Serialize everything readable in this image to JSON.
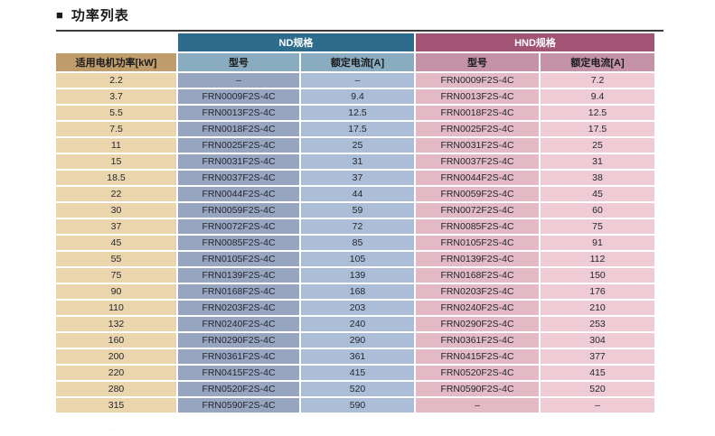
{
  "section": {
    "marker": "■",
    "title": "功率列表"
  },
  "table": {
    "power_header": "适用电机功率[kW]",
    "groups": {
      "nd": "ND规格",
      "hnd": "HND规格"
    },
    "sub_headers": {
      "nd_model": "型号",
      "nd_current": "额定电流[A]",
      "hnd_model": "型号",
      "hnd_current": "额定电流[A]"
    },
    "rows": [
      {
        "power": "2.2",
        "nd_model": "–",
        "nd_current": "–",
        "hnd_model": "FRN0009F2S-4C",
        "hnd_current": "7.2"
      },
      {
        "power": "3.7",
        "nd_model": "FRN0009F2S-4C",
        "nd_current": "9.4",
        "hnd_model": "FRN0013F2S-4C",
        "hnd_current": "9.4"
      },
      {
        "power": "5.5",
        "nd_model": "FRN0013F2S-4C",
        "nd_current": "12.5",
        "hnd_model": "FRN0018F2S-4C",
        "hnd_current": "12.5"
      },
      {
        "power": "7.5",
        "nd_model": "FRN0018F2S-4C",
        "nd_current": "17.5",
        "hnd_model": "FRN0025F2S-4C",
        "hnd_current": "17.5"
      },
      {
        "power": "11",
        "nd_model": "FRN0025F2S-4C",
        "nd_current": "25",
        "hnd_model": "FRN0031F2S-4C",
        "hnd_current": "25"
      },
      {
        "power": "15",
        "nd_model": "FRN0031F2S-4C",
        "nd_current": "31",
        "hnd_model": "FRN0037F2S-4C",
        "hnd_current": "31"
      },
      {
        "power": "18.5",
        "nd_model": "FRN0037F2S-4C",
        "nd_current": "37",
        "hnd_model": "FRN0044F2S-4C",
        "hnd_current": "38"
      },
      {
        "power": "22",
        "nd_model": "FRN0044F2S-4C",
        "nd_current": "44",
        "hnd_model": "FRN0059F2S-4C",
        "hnd_current": "45"
      },
      {
        "power": "30",
        "nd_model": "FRN0059F2S-4C",
        "nd_current": "59",
        "hnd_model": "FRN0072F2S-4C",
        "hnd_current": "60"
      },
      {
        "power": "37",
        "nd_model": "FRN0072F2S-4C",
        "nd_current": "72",
        "hnd_model": "FRN0085F2S-4C",
        "hnd_current": "75"
      },
      {
        "power": "45",
        "nd_model": "FRN0085F2S-4C",
        "nd_current": "85",
        "hnd_model": "FRN0105F2S-4C",
        "hnd_current": "91"
      },
      {
        "power": "55",
        "nd_model": "FRN0105F2S-4C",
        "nd_current": "105",
        "hnd_model": "FRN0139F2S-4C",
        "hnd_current": "112"
      },
      {
        "power": "75",
        "nd_model": "FRN0139F2S-4C",
        "nd_current": "139",
        "hnd_model": "FRN0168F2S-4C",
        "hnd_current": "150"
      },
      {
        "power": "90",
        "nd_model": "FRN0168F2S-4C",
        "nd_current": "168",
        "hnd_model": "FRN0203F2S-4C",
        "hnd_current": "176"
      },
      {
        "power": "110",
        "nd_model": "FRN0203F2S-4C",
        "nd_current": "203",
        "hnd_model": "FRN0240F2S-4C",
        "hnd_current": "210"
      },
      {
        "power": "132",
        "nd_model": "FRN0240F2S-4C",
        "nd_current": "240",
        "hnd_model": "FRN0290F2S-4C",
        "hnd_current": "253"
      },
      {
        "power": "160",
        "nd_model": "FRN0290F2S-4C",
        "nd_current": "290",
        "hnd_model": "FRN0361F2S-4C",
        "hnd_current": "304"
      },
      {
        "power": "200",
        "nd_model": "FRN0361F2S-4C",
        "nd_current": "361",
        "hnd_model": "FRN0415F2S-4C",
        "hnd_current": "377"
      },
      {
        "power": "220",
        "nd_model": "FRN0415F2S-4C",
        "nd_current": "415",
        "hnd_model": "FRN0520F2S-4C",
        "hnd_current": "415"
      },
      {
        "power": "280",
        "nd_model": "FRN0520F2S-4C",
        "nd_current": "520",
        "hnd_model": "FRN0590F2S-4C",
        "hnd_current": "520"
      },
      {
        "power": "315",
        "nd_model": "FRN0590F2S-4C",
        "nd_current": "590",
        "hnd_model": "–",
        "hnd_current": "–"
      }
    ]
  },
  "colors": {
    "nd_group_header": "#2d6c8c",
    "hnd_group_header": "#a25475",
    "power_header": "#be9c6b",
    "power_cell": "#ead5ac",
    "nd_sub_header": "#8aacc0",
    "nd_model_cell": "#98a5c1",
    "nd_current_cell": "#acbed7",
    "hnd_sub_header": "#c493a7",
    "hnd_model_cell": "#e3b9c6",
    "hnd_current_cell": "#efcbd5",
    "title_rule": "#3a3a3a"
  },
  "artifact": {
    "bottom_dots": "···"
  }
}
